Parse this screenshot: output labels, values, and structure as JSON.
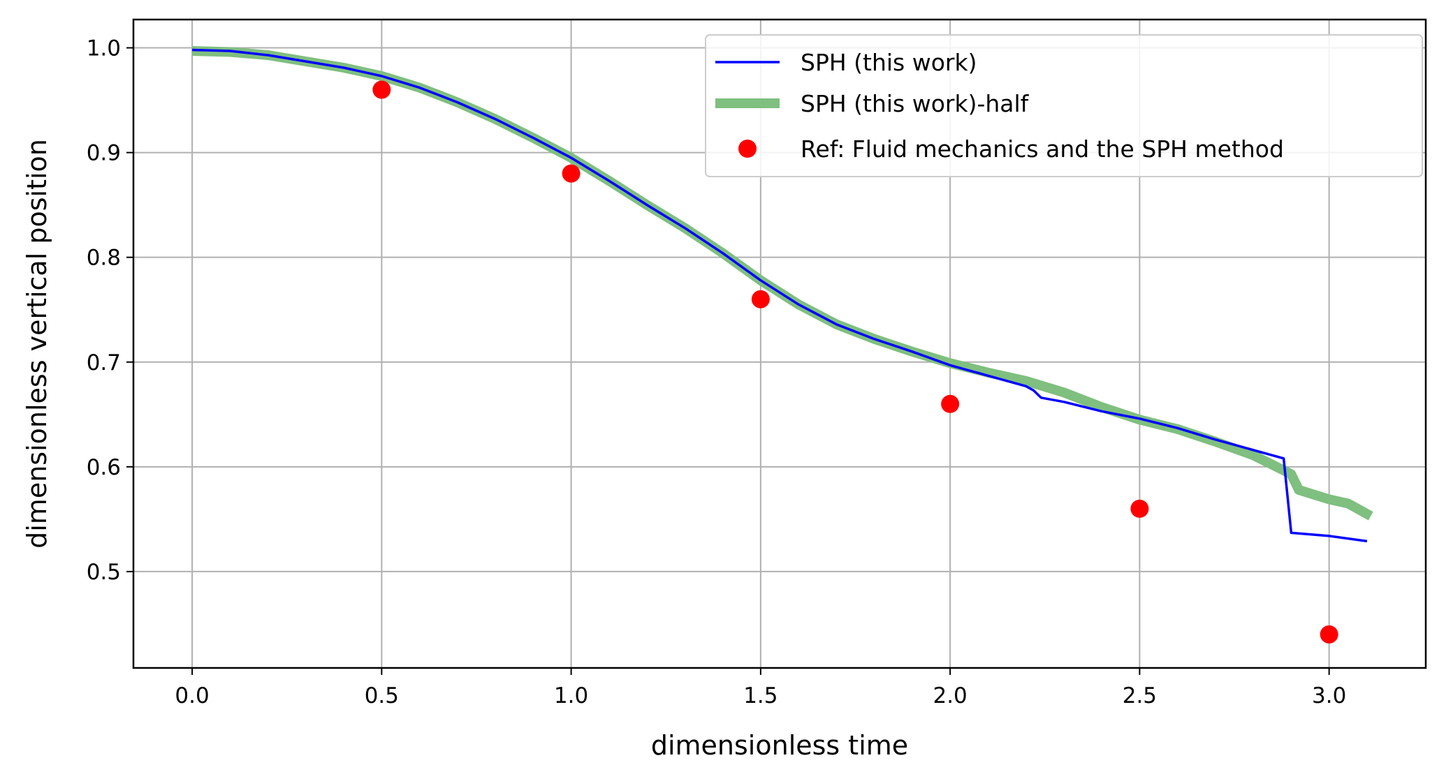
{
  "chart_data": {
    "type": "line",
    "xlabel": "dimensionless time",
    "ylabel": "dimensionless vertical position",
    "xlim": [
      -0.155,
      3.255
    ],
    "ylim": [
      0.408,
      1.027
    ],
    "xticks": [
      "0.0",
      "0.5",
      "1.0",
      "1.5",
      "2.0",
      "2.5",
      "3.0"
    ],
    "xtick_values": [
      0,
      0.5,
      1.0,
      1.5,
      2.0,
      2.5,
      3.0
    ],
    "yticks": [
      "0.5",
      "0.6",
      "0.7",
      "0.8",
      "0.9",
      "1.0"
    ],
    "ytick_values": [
      0.5,
      0.6,
      0.7,
      0.8,
      0.9,
      1.0
    ],
    "grid": true,
    "legend_position": "top-right",
    "series": [
      {
        "name": "SPH (this work)",
        "kind": "line",
        "color": "#0000ff",
        "x": [
          0,
          0.1,
          0.2,
          0.3,
          0.4,
          0.5,
          0.6,
          0.7,
          0.8,
          0.9,
          1.0,
          1.1,
          1.2,
          1.3,
          1.4,
          1.5,
          1.6,
          1.7,
          1.8,
          1.9,
          2.0,
          2.1,
          2.2,
          2.22,
          2.24,
          2.3,
          2.4,
          2.5,
          2.6,
          2.7,
          2.8,
          2.85,
          2.88,
          2.9,
          3.0,
          3.1
        ],
        "y": [
          0.998,
          0.997,
          0.993,
          0.987,
          0.981,
          0.973,
          0.962,
          0.948,
          0.932,
          0.914,
          0.895,
          0.873,
          0.85,
          0.828,
          0.804,
          0.778,
          0.755,
          0.736,
          0.722,
          0.71,
          0.697,
          0.687,
          0.677,
          0.673,
          0.666,
          0.662,
          0.653,
          0.646,
          0.637,
          0.626,
          0.616,
          0.611,
          0.608,
          0.537,
          0.534,
          0.529
        ]
      },
      {
        "name": "SPH (this work)-half",
        "kind": "line",
        "color": "#7fbf7f",
        "x": [
          0,
          0.1,
          0.2,
          0.3,
          0.4,
          0.5,
          0.6,
          0.7,
          0.8,
          0.9,
          1.0,
          1.1,
          1.2,
          1.3,
          1.4,
          1.5,
          1.6,
          1.7,
          1.8,
          1.9,
          2.0,
          2.1,
          2.2,
          2.3,
          2.4,
          2.5,
          2.6,
          2.7,
          2.8,
          2.85,
          2.9,
          2.92,
          3.0,
          3.05,
          3.11
        ],
        "y": [
          0.997,
          0.996,
          0.993,
          0.987,
          0.981,
          0.973,
          0.962,
          0.948,
          0.932,
          0.914,
          0.895,
          0.873,
          0.85,
          0.828,
          0.804,
          0.778,
          0.755,
          0.736,
          0.722,
          0.71,
          0.699,
          0.69,
          0.682,
          0.671,
          0.657,
          0.645,
          0.636,
          0.624,
          0.611,
          0.602,
          0.593,
          0.578,
          0.569,
          0.565,
          0.553
        ]
      },
      {
        "name": "Ref: Fluid mechanics and the SPH method",
        "kind": "scatter",
        "color": "#ff0000",
        "x": [
          0.5,
          1.0,
          1.5,
          2.0,
          2.5,
          3.0
        ],
        "y": [
          0.96,
          0.88,
          0.76,
          0.66,
          0.56,
          0.44
        ]
      }
    ]
  }
}
